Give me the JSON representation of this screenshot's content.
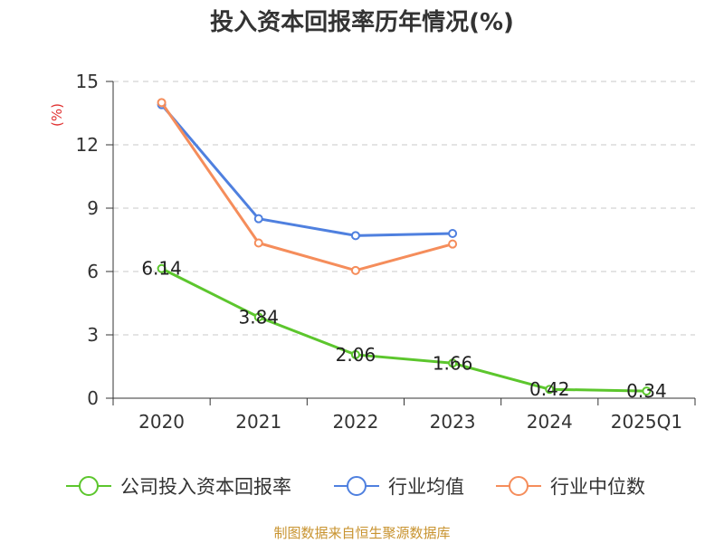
{
  "title": "投入资本回报率历年情况(%)",
  "source": "制图数据来自恒生聚源数据库",
  "chart_data": {
    "type": "line",
    "title": "投入资本回报率历年情况(%)",
    "ylabel": "(%)",
    "xlabel": "",
    "ylim": [
      0,
      15
    ],
    "yticks": [
      0,
      3,
      6,
      9,
      12,
      15
    ],
    "grid": true,
    "legend_position": "bottom",
    "categories": [
      "2020",
      "2021",
      "2022",
      "2023",
      "2024",
      "2025Q1"
    ],
    "series": [
      {
        "name": "公司投入资本回报率",
        "color": "#5cc62d",
        "values": [
          6.14,
          3.84,
          2.06,
          1.66,
          0.42,
          0.34
        ],
        "labels": [
          "6.14",
          "3.84",
          "2.06",
          "1.66",
          "0.42",
          "0.34"
        ]
      },
      {
        "name": "行业均值",
        "color": "#4f80df",
        "values": [
          13.9,
          8.5,
          7.7,
          7.8,
          null,
          null
        ]
      },
      {
        "name": "行业中位数",
        "color": "#f58d5b",
        "values": [
          14.0,
          7.35,
          6.05,
          7.3,
          null,
          null
        ]
      }
    ]
  }
}
